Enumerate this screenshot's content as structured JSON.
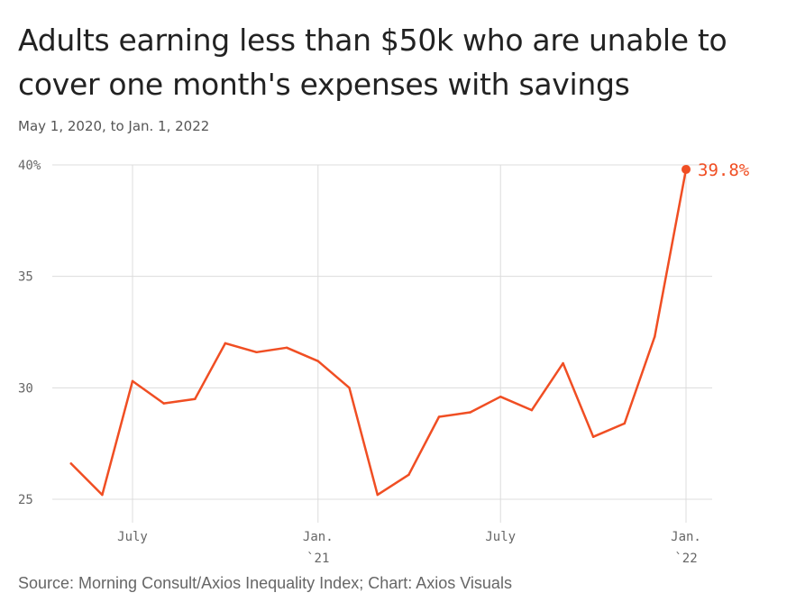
{
  "title": "Adults earning less than $50k who are unable to cover one month's expenses with savings",
  "subtitle": "May 1, 2020, to Jan. 1, 2022",
  "source": "Source: Morning Consult/Axios Inequality Index; Chart: Axios Visuals",
  "colors": {
    "line": "#f04e23",
    "grid": "#dcdcdc",
    "text": "#222222"
  },
  "chart_data": {
    "type": "line",
    "title": "Adults earning less than $50k who are unable to cover one month's expenses with savings",
    "subtitle": "May 1, 2020, to Jan. 1, 2022",
    "xlabel": "",
    "ylabel": "",
    "ylim": [
      24,
      40
    ],
    "xlim": [
      "2020-04-22",
      "2022-01-16"
    ],
    "grid": true,
    "legend": "none",
    "y_ticks": [
      {
        "value": 40,
        "label": "40%"
      },
      {
        "value": 35,
        "label": "35"
      },
      {
        "value": 30,
        "label": "30"
      },
      {
        "value": 25,
        "label": "25"
      }
    ],
    "x_ticks": [
      {
        "date": "2020-07-01",
        "label": "July",
        "sublabel": ""
      },
      {
        "date": "2021-01-01",
        "label": "Jan.",
        "sublabel": "`21"
      },
      {
        "date": "2021-07-01",
        "label": "July",
        "sublabel": ""
      },
      {
        "date": "2022-01-01",
        "label": "Jan.",
        "sublabel": "`22"
      }
    ],
    "series": [
      {
        "points": [
          {
            "x": "2020-05-01",
            "y": 26.6
          },
          {
            "x": "2020-06-01",
            "y": 25.2
          },
          {
            "x": "2020-07-01",
            "y": 30.3
          },
          {
            "x": "2020-08-01",
            "y": 29.3
          },
          {
            "x": "2020-09-01",
            "y": 29.5
          },
          {
            "x": "2020-10-01",
            "y": 32.0
          },
          {
            "x": "2020-11-01",
            "y": 31.6
          },
          {
            "x": "2020-12-01",
            "y": 31.8
          },
          {
            "x": "2021-01-01",
            "y": 31.2
          },
          {
            "x": "2021-02-01",
            "y": 30.0
          },
          {
            "x": "2021-03-01",
            "y": 25.2
          },
          {
            "x": "2021-04-01",
            "y": 26.1
          },
          {
            "x": "2021-05-01",
            "y": 28.7
          },
          {
            "x": "2021-06-01",
            "y": 28.9
          },
          {
            "x": "2021-07-01",
            "y": 29.6
          },
          {
            "x": "2021-08-01",
            "y": 29.0
          },
          {
            "x": "2021-09-01",
            "y": 31.1
          },
          {
            "x": "2021-10-01",
            "y": 27.8
          },
          {
            "x": "2021-11-01",
            "y": 28.4
          },
          {
            "x": "2021-12-01",
            "y": 32.3
          },
          {
            "x": "2022-01-01",
            "y": 39.8
          }
        ]
      }
    ],
    "annotations": [
      {
        "x": "2022-01-01",
        "y": 39.8,
        "label": "39.8%"
      }
    ]
  }
}
